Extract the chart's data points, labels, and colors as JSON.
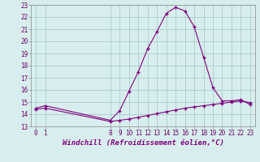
{
  "line1_x": [
    0,
    1,
    8,
    9,
    10,
    11,
    12,
    13,
    14,
    15,
    16,
    17,
    18,
    19,
    20,
    21,
    22,
    23
  ],
  "line1_y": [
    14.5,
    14.7,
    13.5,
    14.3,
    15.9,
    17.5,
    19.4,
    20.8,
    22.3,
    22.8,
    22.5,
    21.2,
    18.7,
    16.2,
    15.1,
    15.1,
    15.2,
    14.8
  ],
  "line2_x": [
    0,
    1,
    8,
    9,
    10,
    11,
    12,
    13,
    14,
    15,
    16,
    17,
    18,
    19,
    20,
    21,
    22,
    23
  ],
  "line2_y": [
    14.4,
    14.5,
    13.4,
    13.5,
    13.6,
    13.75,
    13.9,
    14.05,
    14.2,
    14.35,
    14.5,
    14.6,
    14.7,
    14.8,
    14.9,
    15.0,
    15.1,
    14.95
  ],
  "line_color": "#800080",
  "bg_color": "#d8eeee",
  "grid_color": "#aacccc",
  "xlabel": "Windchill (Refroidissement éolien,°C)",
  "ylim": [
    13,
    23
  ],
  "xlim_min": -0.5,
  "xlim_max": 23.5,
  "yticks": [
    13,
    14,
    15,
    16,
    17,
    18,
    19,
    20,
    21,
    22,
    23
  ],
  "xticks": [
    0,
    1,
    8,
    9,
    10,
    11,
    12,
    13,
    14,
    15,
    16,
    17,
    18,
    19,
    20,
    21,
    22,
    23
  ],
  "tick_fontsize": 5.5,
  "xlabel_fontsize": 6.5
}
